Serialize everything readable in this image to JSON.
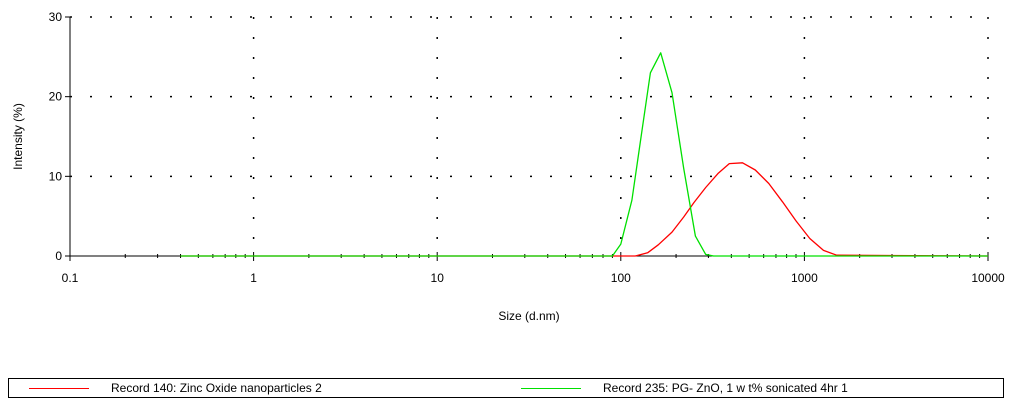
{
  "chart_data": {
    "type": "line",
    "xlabel": "Size (d.nm)",
    "ylabel": "Intensity (%)",
    "x_scale": "log",
    "xlim": [
      0.1,
      10000
    ],
    "ylim": [
      0,
      30
    ],
    "x_ticks": [
      "0.1",
      "1",
      "10",
      "100",
      "1000",
      "10000"
    ],
    "y_ticks": [
      "0",
      "10",
      "20",
      "30"
    ],
    "grid": true,
    "legend_position": "bottom",
    "series": [
      {
        "name": "Record 140: Zinc Oxide nanoparticles 2",
        "color": "#ff0000",
        "x": [
          0.4,
          1,
          10,
          100,
          120,
          140,
          160,
          190,
          220,
          250,
          290,
          340,
          390,
          460,
          540,
          640,
          760,
          900,
          1070,
          1270,
          1500,
          10000
        ],
        "y": [
          0,
          0,
          0,
          0,
          0,
          0.4,
          1.4,
          3.0,
          4.9,
          6.7,
          8.6,
          10.4,
          11.6,
          11.7,
          10.8,
          9.1,
          6.8,
          4.4,
          2.2,
          0.7,
          0.1,
          0
        ]
      },
      {
        "name": "Record 235: PG- ZnO, 1 w t% sonicated 4hr 1",
        "color": "#00e000",
        "x": [
          0.4,
          1,
          10,
          90,
          100,
          115,
          130,
          145,
          165,
          190,
          220,
          255,
          290,
          320,
          10000
        ],
        "y": [
          0,
          0,
          0,
          0,
          1.5,
          7.0,
          15.5,
          23.0,
          25.5,
          20.5,
          11.0,
          2.5,
          0.2,
          0,
          0
        ]
      }
    ]
  }
}
